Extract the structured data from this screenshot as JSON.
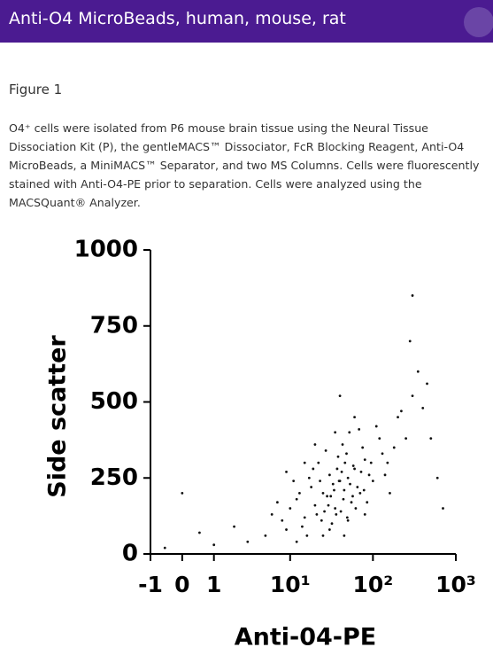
{
  "header": {
    "title": "Anti-O4 MicroBeads, human, mouse, rat"
  },
  "figure": {
    "label": "Figure 1",
    "caption": "O4⁺ cells were isolated from P6 mouse brain tissue using the Neural Tissue Dissociation Kit (P), the gentleMACS™ Dissociator, FcR Blocking Reagent, Anti-O4 MicroBeads, a MiniMACS™ Separator, and two MS Columns. Cells were fluorescently stained with Anti-O4-PE prior to separation. Cells were analyzed using the MACSQuant® Analyzer."
  },
  "chart_data": {
    "type": "scatter",
    "x_label": "Anti-04-PE",
    "y_label": "Side scatter",
    "xscale": "asinh",
    "color": "#111111",
    "xlim": [
      -1,
      1000
    ],
    "ylim": [
      0,
      1000
    ],
    "xticks": [
      -1,
      0,
      1,
      {
        "value": 10,
        "label": "10¹"
      },
      {
        "value": 100,
        "label": "10²"
      },
      {
        "value": 1000,
        "label": "10³"
      }
    ],
    "yticks": [
      0,
      250,
      500,
      750,
      1000
    ],
    "x": [
      12,
      18,
      25,
      30,
      35,
      40,
      22,
      28,
      45,
      55,
      60,
      15,
      20,
      33,
      38,
      50,
      70,
      80,
      90,
      26,
      31,
      42,
      48,
      65,
      75,
      100,
      120,
      150,
      8,
      10,
      14,
      17,
      24,
      27,
      36,
      44,
      52,
      58,
      85,
      110,
      130,
      200,
      250,
      300,
      5,
      6,
      3,
      2,
      1,
      0.5,
      -0.5,
      0,
      7,
      9,
      11,
      13,
      16,
      19,
      21,
      23,
      29,
      32,
      34,
      37,
      39,
      41,
      43,
      46,
      49,
      53,
      57,
      62,
      68,
      72,
      78,
      95,
      140,
      180,
      220,
      350,
      400,
      500,
      600,
      700,
      300,
      280,
      450,
      60,
      40,
      30,
      20,
      25,
      35,
      15,
      12,
      9,
      50,
      45,
      80,
      160
    ],
    "values": [
      180,
      220,
      200,
      260,
      150,
      240,
      300,
      190,
      210,
      170,
      280,
      120,
      160,
      230,
      320,
      250,
      200,
      310,
      260,
      140,
      190,
      270,
      330,
      220,
      350,
      240,
      380,
      300,
      110,
      150,
      90,
      250,
      110,
      340,
      130,
      180,
      400,
      290,
      170,
      420,
      330,
      450,
      380,
      520,
      60,
      130,
      40,
      90,
      30,
      70,
      20,
      200,
      170,
      80,
      240,
      200,
      60,
      280,
      130,
      240,
      160,
      100,
      210,
      280,
      240,
      140,
      360,
      300,
      120,
      230,
      190,
      150,
      410,
      270,
      210,
      300,
      260,
      350,
      470,
      600,
      480,
      380,
      250,
      150,
      850,
      700,
      560,
      450,
      520,
      80,
      360,
      60,
      400,
      300,
      40,
      270,
      110,
      60,
      130,
      200
    ]
  }
}
